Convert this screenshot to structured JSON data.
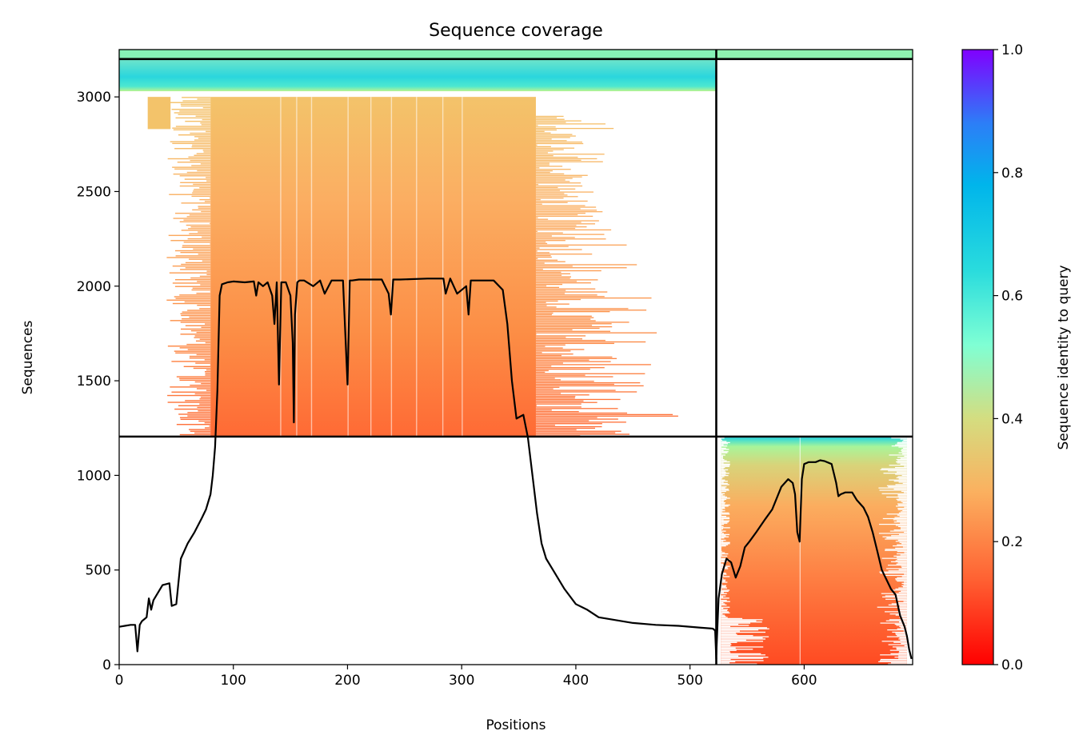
{
  "chart_data": {
    "type": "heatmap",
    "title": "Sequence coverage",
    "xlabel": "Positions",
    "ylabel": "Sequences",
    "xlim": [
      0,
      695
    ],
    "ylim": [
      0,
      3250
    ],
    "x_ticks": [
      0,
      100,
      200,
      300,
      400,
      500,
      600
    ],
    "y_ticks": [
      0,
      500,
      1000,
      1500,
      2000,
      2500,
      3000
    ],
    "separators": {
      "vertical_x": 523,
      "horizontal_y": [
        1205,
        3200
      ]
    },
    "colorbar": {
      "label": "Sequence identity to query",
      "range": [
        0,
        1
      ],
      "ticks": [
        "0.0",
        "0.2",
        "0.4",
        "0.6",
        "0.8",
        "1.0"
      ],
      "colormap": "rainbow_r",
      "stops": [
        "#ff0000",
        "#ff7f40",
        "#d4dd80",
        "#7fffd4",
        "#2adcdd",
        "#00b5eb",
        "#2c7ef7",
        "#8000ff"
      ]
    },
    "coverage_blocks": [
      {
        "name": "block-a-top",
        "x": [
          0,
          523
        ],
        "y": [
          3200,
          3250
        ],
        "identity": 0.5
      },
      {
        "name": "block-a-upper",
        "x": [
          0,
          523
        ],
        "y": [
          3030,
          3200
        ],
        "identity": 0.62
      },
      {
        "name": "block-a-main",
        "x": [
          80,
          365
        ],
        "y": [
          1205,
          3000
        ],
        "identity": [
          0.16,
          0.28
        ]
      },
      {
        "name": "block-b-top",
        "x": [
          523,
          695
        ],
        "y": [
          3200,
          3250
        ],
        "identity": 0.45
      },
      {
        "name": "block-b-main",
        "x": [
          527,
          690
        ],
        "y": [
          0,
          1200
        ],
        "identity": [
          0.12,
          0.6
        ]
      }
    ],
    "series": [
      {
        "x": [
          0,
          5,
          10,
          14,
          16,
          18,
          20,
          24,
          26,
          28,
          30,
          34,
          38,
          44,
          46,
          50,
          54,
          60,
          66,
          72,
          76,
          80,
          82,
          84,
          86,
          88,
          90,
          95,
          100,
          110,
          118,
          120,
          122,
          126,
          130,
          134,
          136,
          138,
          140,
          142,
          146,
          150,
          152,
          153,
          154,
          156,
          158,
          162,
          170,
          176,
          180,
          186,
          190,
          196,
          200,
          202,
          204,
          210,
          230,
          236,
          238,
          240,
          246,
          270,
          284,
          286,
          290,
          296,
          304,
          306,
          308,
          312,
          320,
          328,
          336,
          340,
          344,
          348,
          354,
          358,
          362,
          366,
          370,
          374,
          380,
          390,
          400,
          410,
          420,
          430,
          440,
          450,
          470,
          490,
          510,
          520,
          522,
          523
        ],
        "values": [
          200,
          205,
          210,
          210,
          70,
          210,
          230,
          250,
          350,
          290,
          340,
          380,
          420,
          430,
          310,
          320,
          560,
          640,
          700,
          770,
          820,
          900,
          1000,
          1150,
          1450,
          1950,
          2010,
          2020,
          2025,
          2020,
          2025,
          1950,
          2020,
          2000,
          2020,
          1950,
          1800,
          2020,
          1480,
          2020,
          2020,
          1950,
          1700,
          1280,
          1850,
          2020,
          2030,
          2030,
          2000,
          2030,
          1960,
          2030,
          2030,
          2030,
          1480,
          2030,
          2030,
          2035,
          2035,
          1960,
          1850,
          2035,
          2035,
          2040,
          2040,
          1960,
          2040,
          1960,
          2000,
          1850,
          2030,
          2030,
          2030,
          2030,
          1980,
          1800,
          1500,
          1300,
          1320,
          1200,
          1000,
          800,
          640,
          560,
          500,
          400,
          320,
          290,
          250,
          240,
          230,
          220,
          210,
          205,
          195,
          190,
          180,
          30
        ]
      },
      {
        "x": [
          523,
          525,
          528,
          532,
          536,
          540,
          544,
          548,
          552,
          558,
          566,
          572,
          580,
          586,
          590,
          592,
          594,
          596,
          598,
          600,
          602,
          604,
          610,
          614,
          618,
          624,
          628,
          630,
          632,
          636,
          642,
          646,
          652,
          656,
          660,
          664,
          668,
          672,
          676,
          680,
          684,
          688,
          690,
          692,
          694
        ],
        "values": [
          50,
          350,
          480,
          560,
          540,
          460,
          520,
          620,
          650,
          700,
          770,
          820,
          940,
          980,
          960,
          900,
          700,
          650,
          980,
          1060,
          1065,
          1070,
          1070,
          1080,
          1075,
          1060,
          960,
          890,
          900,
          910,
          910,
          870,
          830,
          780,
          700,
          600,
          500,
          450,
          400,
          370,
          260,
          200,
          150,
          80,
          30
        ]
      }
    ]
  }
}
